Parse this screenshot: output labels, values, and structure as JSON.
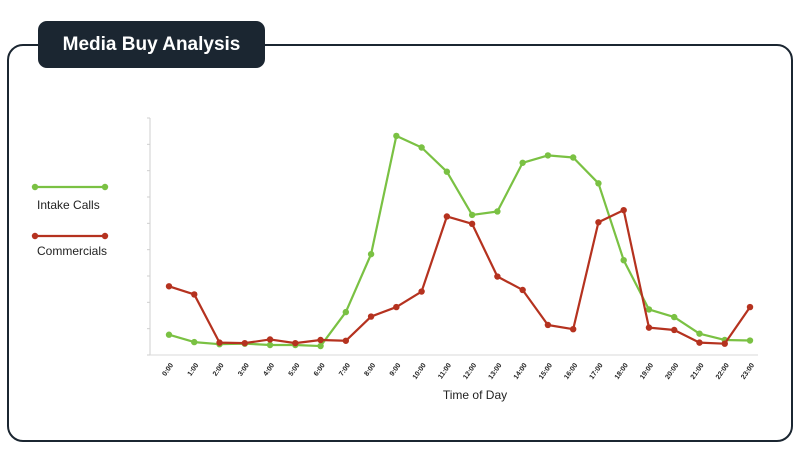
{
  "title": "Media Buy Analysis",
  "colors": {
    "frame": "#1b2631",
    "intake": "#7ac143",
    "commercials": "#b5321f"
  },
  "chart_data": {
    "type": "line",
    "title": "Media Buy Analysis",
    "xlabel": "Time of Day",
    "ylabel": "",
    "categories": [
      "0:00",
      "1:00",
      "2:00",
      "3:00",
      "4:00",
      "5:00",
      "6:00",
      "7:00",
      "8:00",
      "9:00",
      "10:00",
      "11:00",
      "12:00",
      "13:00",
      "14:00",
      "15:00",
      "16:00",
      "17:00",
      "18:00",
      "19:00",
      "20:00",
      "21:00",
      "22:00",
      "23:00"
    ],
    "ylim": [
      0,
      9
    ],
    "y_ticks": 9,
    "grid": false,
    "legend_position": "left",
    "series": [
      {
        "name": "Intake Calls",
        "color": "#7ac143",
        "values": [
          0.77,
          0.49,
          0.41,
          0.43,
          0.38,
          0.38,
          0.34,
          1.63,
          3.83,
          8.32,
          7.88,
          6.96,
          5.32,
          5.45,
          7.3,
          7.58,
          7.5,
          6.52,
          3.6,
          1.73,
          1.44,
          0.81,
          0.57,
          0.55
        ]
      },
      {
        "name": "Commercials",
        "color": "#b5321f",
        "values": [
          2.61,
          2.3,
          0.47,
          0.45,
          0.59,
          0.45,
          0.57,
          0.54,
          1.46,
          1.82,
          2.41,
          5.26,
          4.98,
          2.98,
          2.47,
          1.14,
          0.98,
          5.04,
          5.5,
          1.04,
          0.95,
          0.47,
          0.43,
          1.82
        ]
      }
    ]
  }
}
